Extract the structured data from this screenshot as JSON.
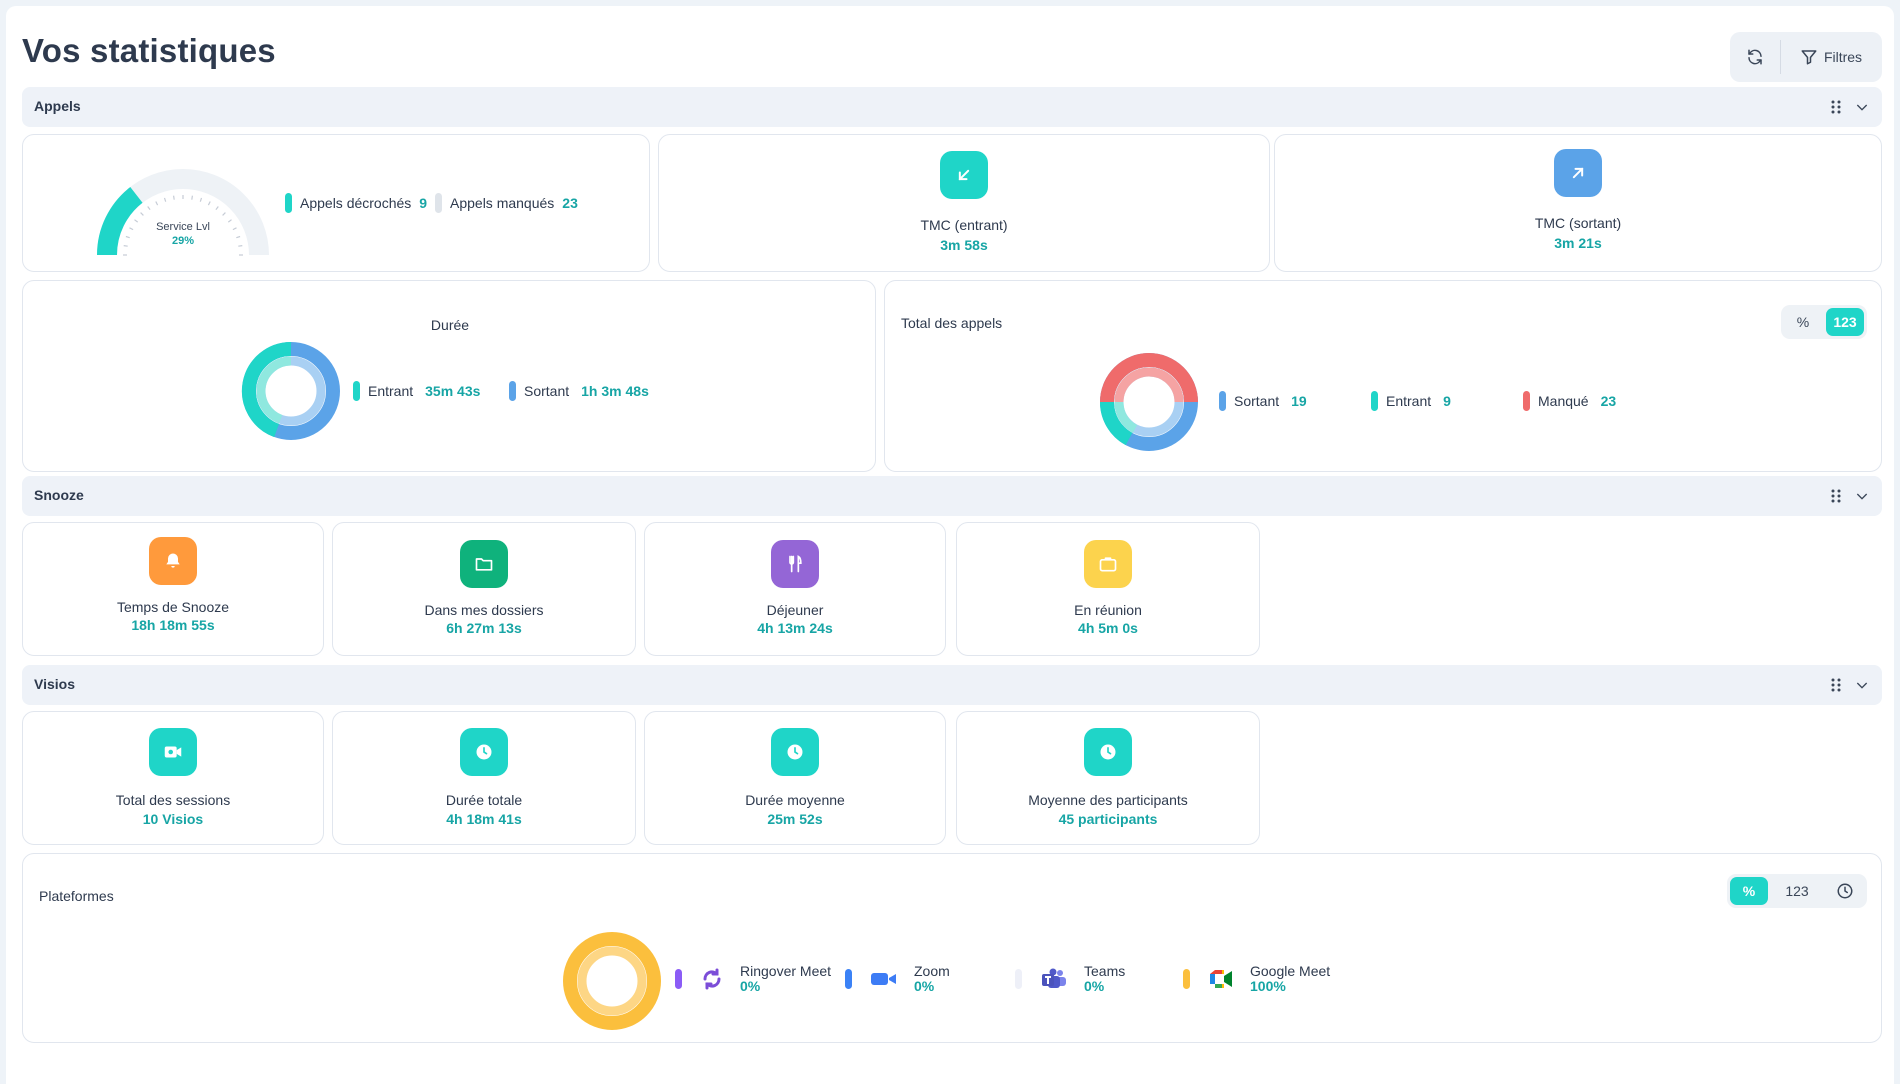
{
  "page_title": "Vos statistiques",
  "toolbar": {
    "filters_label": "Filtres"
  },
  "colors": {
    "teal": "#1fd5c8",
    "blue": "#5ba3e8",
    "red": "#ef6b6b",
    "orange": "#ff9a3c",
    "green": "#0fb27c",
    "purple": "#9466d6",
    "yellow": "#fcd34d",
    "gold": "#fbbf3d"
  },
  "sections": {
    "calls": "Appels",
    "snooze": "Snooze",
    "visios": "Visios"
  },
  "calls": {
    "gauge": {
      "label": "Service Lvl",
      "value": "29%",
      "fraction": 0.29
    },
    "answered": {
      "label": "Appels décrochés",
      "value": "9"
    },
    "missed": {
      "label": "Appels manqués",
      "value": "23"
    },
    "tmc_in": {
      "label": "TMC (entrant)",
      "value": "3m 58s",
      "icon": "arrow-down-left-icon"
    },
    "tmc_out": {
      "label": "TMC (sortant)",
      "value": "3m 21s",
      "icon": "arrow-up-right-icon"
    },
    "duration": {
      "title": "Durée",
      "incoming": {
        "label": "Entrant",
        "value": "35m 43s"
      },
      "outgoing": {
        "label": "Sortant",
        "value": "1h 3m 48s"
      }
    },
    "total": {
      "title": "Total des appels",
      "toggle": [
        "%",
        "123"
      ],
      "outgoing": {
        "label": "Sortant",
        "value": "19"
      },
      "incoming": {
        "label": "Entrant",
        "value": "9"
      },
      "missed": {
        "label": "Manqué",
        "value": "23"
      }
    }
  },
  "snooze": [
    {
      "label": "Temps de Snooze",
      "value": "18h 18m 55s",
      "icon": "bell-icon"
    },
    {
      "label": "Dans mes dossiers",
      "value": "6h 27m 13s",
      "icon": "folder-icon"
    },
    {
      "label": "Déjeuner",
      "value": "4h 13m 24s",
      "icon": "cutlery-icon"
    },
    {
      "label": "En réunion",
      "value": "4h 5m 0s",
      "icon": "briefcase-icon"
    }
  ],
  "visios": [
    {
      "label": "Total des sessions",
      "value": "10 Visios",
      "icon": "video-icon"
    },
    {
      "label": "Durée totale",
      "value": "4h 18m 41s",
      "icon": "clock-icon"
    },
    {
      "label": "Durée moyenne",
      "value": "25m 52s",
      "icon": "clock-icon"
    },
    {
      "label": "Moyenne des participants",
      "value": "45 participants",
      "icon": "clock-icon"
    }
  ],
  "platforms": {
    "title": "Plateformes",
    "toggle": [
      "%",
      "123"
    ],
    "items": [
      {
        "name": "Ringover Meet",
        "value": "0%"
      },
      {
        "name": "Zoom",
        "value": "0%"
      },
      {
        "name": "Teams",
        "value": "0%"
      },
      {
        "name": "Google Meet",
        "value": "100%"
      }
    ]
  }
}
